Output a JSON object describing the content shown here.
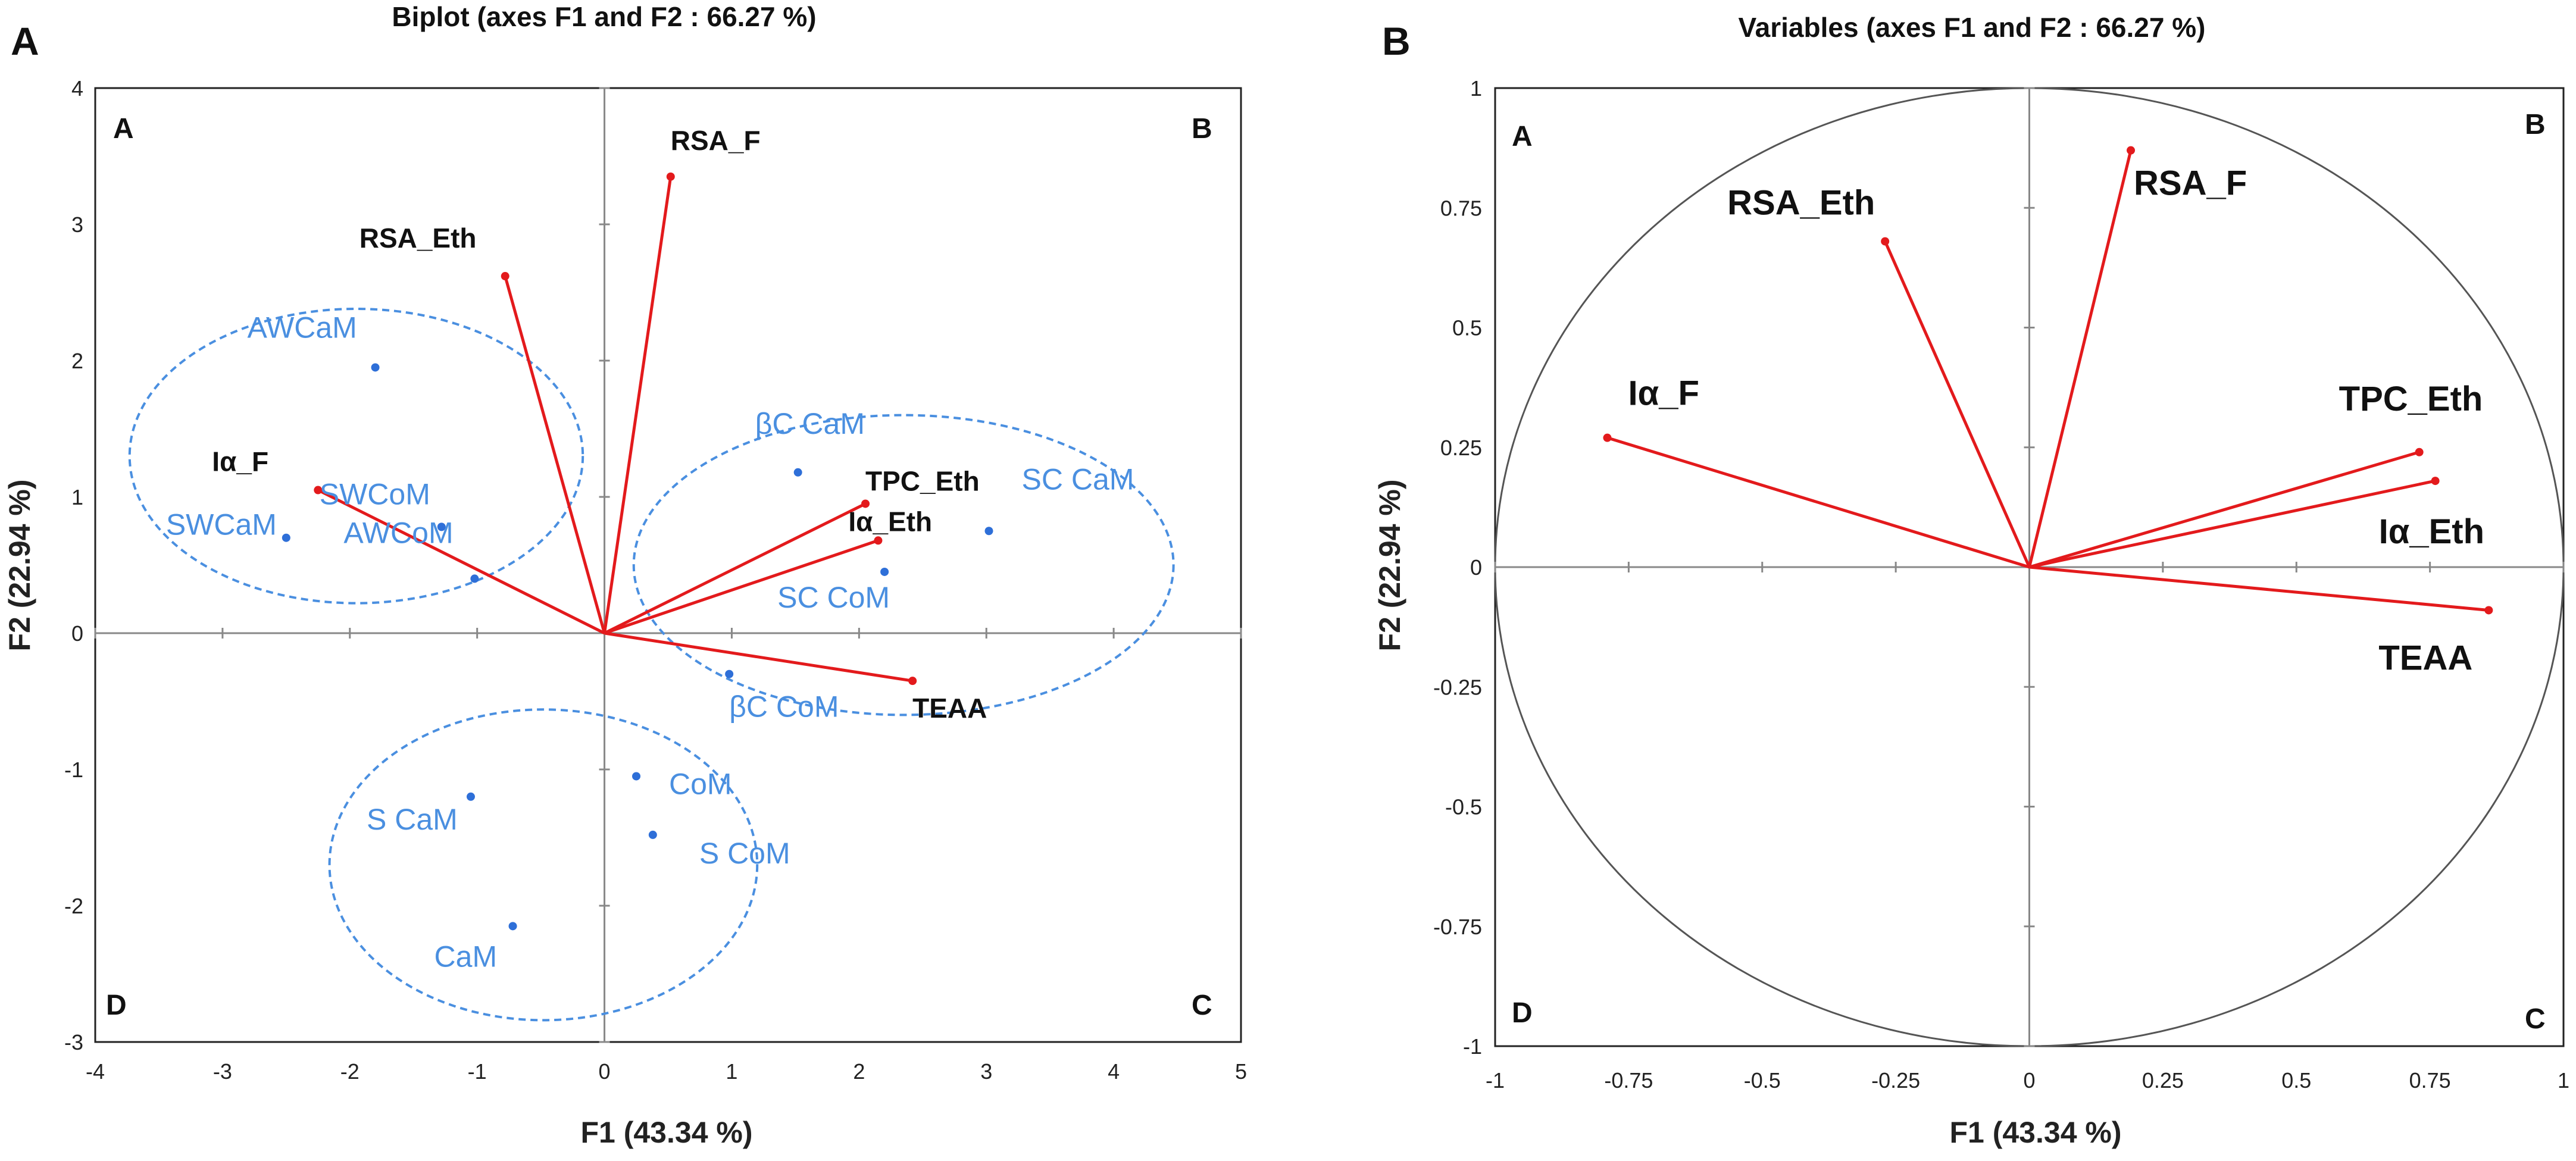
{
  "chart_data": [
    {
      "panel": "A",
      "type": "scatter",
      "title": "Biplot (axes F1 and  F2 : 66.27 %)",
      "xlabel": "F1 (43.34 %)",
      "ylabel": "F2 (22.94 %)",
      "xlim": [
        -4,
        5
      ],
      "ylim": [
        -3,
        4
      ],
      "xticks": [
        "-4",
        "-3",
        "-2",
        "-1",
        "0",
        "1",
        "2",
        "3",
        "4",
        "5"
      ],
      "yticks": [
        "-3",
        "-2",
        "-1",
        "0",
        "1",
        "2",
        "3",
        "4"
      ],
      "quadrants": [
        "A",
        "B",
        "C",
        "D"
      ],
      "variables": [
        {
          "label": "RSA_F",
          "x": 0.52,
          "y": 3.35
        },
        {
          "label": "RSA_Eth",
          "x": -0.78,
          "y": 2.62
        },
        {
          "label": "Iα_F",
          "x": -2.25,
          "y": 1.05
        },
        {
          "label": "TPC_Eth",
          "x": 2.05,
          "y": 0.95
        },
        {
          "label": "Iα_Eth",
          "x": 2.15,
          "y": 0.68
        },
        {
          "label": "TEAA",
          "x": 2.42,
          "y": -0.35
        }
      ],
      "observations": [
        {
          "label": "AWCaM",
          "x": -1.8,
          "y": 1.95
        },
        {
          "label": "SWCoM",
          "x": -1.28,
          "y": 0.78
        },
        {
          "label": "SWCaM",
          "x": -2.5,
          "y": 0.7
        },
        {
          "label": "AWCoM",
          "x": -1.02,
          "y": 0.4
        },
        {
          "label": "βC CaM",
          "x": 1.52,
          "y": 1.18
        },
        {
          "label": "SC CaM",
          "x": 3.02,
          "y": 0.75
        },
        {
          "label": "SC CoM",
          "x": 2.2,
          "y": 0.45
        },
        {
          "label": "βC CoM",
          "x": 0.98,
          "y": -0.3
        },
        {
          "label": "CoM",
          "x": 0.25,
          "y": -1.05
        },
        {
          "label": "S CoM",
          "x": 0.38,
          "y": -1.48
        },
        {
          "label": "S CaM",
          "x": -1.05,
          "y": -1.2
        },
        {
          "label": "CaM",
          "x": -0.72,
          "y": -2.15
        }
      ],
      "groups": [
        {
          "name": "group-1",
          "cx": -1.95,
          "cy": 1.3,
          "rx": 1.78,
          "ry": 1.08
        },
        {
          "name": "group-2",
          "cx": 2.35,
          "cy": 0.5,
          "rx": 2.12,
          "ry": 1.1
        },
        {
          "name": "group-3",
          "cx": -0.48,
          "cy": -1.7,
          "rx": 1.68,
          "ry": 1.14
        }
      ]
    },
    {
      "panel": "B",
      "type": "line",
      "title": "Variables (axes F1 and F2 : 66.27 %)",
      "xlabel": "F1 (43.34 %)",
      "ylabel": "F2 (22.94 %)",
      "xlim": [
        -1,
        1
      ],
      "ylim": [
        -1,
        1
      ],
      "xticks": [
        "-1",
        "-0.75",
        "-0.5",
        "-0.25",
        "0",
        "0.25",
        "0.5",
        "0.75",
        "1"
      ],
      "yticks": [
        "-1",
        "-0.75",
        "-0.5",
        "-0.25",
        "0",
        "0.25",
        "0.5",
        "0.75",
        "1"
      ],
      "quadrants": [
        "A",
        "B",
        "C",
        "D"
      ],
      "variables": [
        {
          "label": "RSA_F",
          "x": 0.19,
          "y": 0.87
        },
        {
          "label": "RSA_Eth",
          "x": -0.27,
          "y": 0.68
        },
        {
          "label": "Iα_F",
          "x": -0.79,
          "y": 0.27
        },
        {
          "label": "TPC_Eth",
          "x": 0.73,
          "y": 0.24
        },
        {
          "label": "Iα_Eth",
          "x": 0.76,
          "y": 0.18
        },
        {
          "label": "TEAA",
          "x": 0.86,
          "y": -0.09
        }
      ]
    }
  ],
  "colors": {
    "vector": "#e31a1c",
    "observation": "#2e6fd8",
    "observation_label": "#4a8fe0",
    "ellipse": "#4a8fe0"
  }
}
